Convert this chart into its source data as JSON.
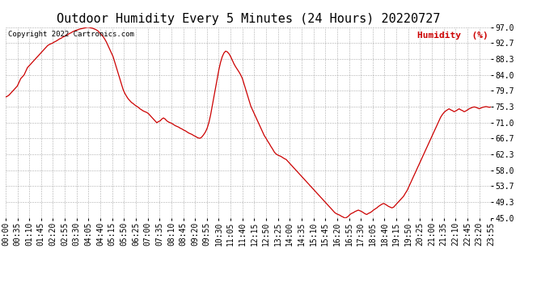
{
  "title": "Outdoor Humidity Every 5 Minutes (24 Hours) 20220727",
  "copyright_text": "Copyright 2022 Cartronics.com",
  "legend_text": "Humidity  (%)",
  "line_color": "#cc0000",
  "background_color": "#ffffff",
  "grid_color": "#999999",
  "ylim": [
    45.0,
    97.0
  ],
  "yticks": [
    45.0,
    49.3,
    53.7,
    58.0,
    62.3,
    66.7,
    71.0,
    75.3,
    79.7,
    84.0,
    88.3,
    92.7,
    97.0
  ],
  "title_fontsize": 11,
  "axis_fontsize": 7,
  "xtick_labels": [
    "00:00",
    "00:35",
    "01:10",
    "01:45",
    "02:20",
    "02:55",
    "03:30",
    "04:05",
    "04:40",
    "05:15",
    "05:50",
    "06:25",
    "07:00",
    "07:35",
    "08:10",
    "08:45",
    "09:20",
    "09:55",
    "10:30",
    "11:05",
    "11:40",
    "12:15",
    "12:50",
    "13:25",
    "14:00",
    "14:35",
    "15:10",
    "15:45",
    "16:20",
    "16:55",
    "17:30",
    "18:05",
    "18:40",
    "19:15",
    "19:50",
    "20:25",
    "21:00",
    "21:35",
    "22:10",
    "22:45",
    "23:20",
    "23:55"
  ],
  "humidity_values": [
    78.0,
    78.2,
    78.5,
    79.0,
    79.5,
    80.0,
    80.5,
    81.0,
    82.0,
    83.0,
    83.5,
    84.0,
    85.0,
    86.0,
    86.5,
    87.0,
    87.5,
    88.0,
    88.5,
    89.0,
    89.5,
    90.0,
    90.5,
    91.0,
    91.5,
    92.0,
    92.3,
    92.5,
    92.7,
    93.0,
    93.2,
    93.5,
    93.8,
    94.0,
    94.3,
    94.5,
    94.8,
    95.0,
    95.3,
    95.5,
    95.8,
    96.0,
    96.2,
    96.3,
    96.5,
    96.6,
    96.7,
    96.8,
    96.9,
    97.0,
    96.9,
    96.8,
    96.7,
    96.5,
    96.3,
    96.0,
    95.5,
    95.0,
    94.5,
    93.8,
    93.0,
    92.0,
    91.0,
    90.0,
    89.0,
    87.5,
    86.0,
    84.5,
    83.0,
    81.5,
    80.0,
    79.0,
    78.2,
    77.5,
    77.0,
    76.5,
    76.2,
    75.8,
    75.5,
    75.2,
    74.8,
    74.5,
    74.2,
    74.0,
    73.8,
    73.5,
    73.0,
    72.5,
    72.0,
    71.5,
    71.0,
    71.3,
    71.5,
    72.0,
    72.3,
    72.0,
    71.5,
    71.2,
    71.0,
    70.8,
    70.5,
    70.2,
    70.0,
    69.8,
    69.5,
    69.3,
    69.0,
    68.8,
    68.5,
    68.2,
    68.0,
    67.8,
    67.5,
    67.3,
    67.0,
    66.8,
    66.8,
    67.2,
    67.8,
    68.5,
    69.5,
    71.0,
    73.0,
    75.5,
    78.0,
    80.5,
    83.0,
    85.5,
    87.5,
    89.0,
    90.0,
    90.5,
    90.3,
    89.8,
    89.0,
    88.0,
    87.0,
    86.2,
    85.5,
    84.8,
    84.0,
    83.0,
    81.5,
    80.0,
    78.5,
    77.0,
    75.5,
    74.5,
    73.5,
    72.5,
    71.5,
    70.5,
    69.5,
    68.5,
    67.5,
    66.8,
    66.0,
    65.3,
    64.5,
    63.8,
    63.0,
    62.5,
    62.2,
    62.0,
    61.8,
    61.5,
    61.2,
    61.0,
    60.5,
    60.0,
    59.5,
    59.0,
    58.5,
    58.0,
    57.5,
    57.0,
    56.5,
    56.0,
    55.5,
    55.0,
    54.5,
    54.0,
    53.5,
    53.0,
    52.5,
    52.0,
    51.5,
    51.0,
    50.5,
    50.0,
    49.5,
    49.0,
    48.5,
    48.0,
    47.5,
    47.0,
    46.5,
    46.2,
    46.0,
    45.8,
    45.5,
    45.3,
    45.0,
    45.2,
    45.5,
    46.0,
    46.3,
    46.5,
    46.8,
    47.0,
    47.2,
    47.0,
    46.8,
    46.5,
    46.2,
    46.0,
    46.3,
    46.5,
    46.8,
    47.2,
    47.5,
    47.8,
    48.2,
    48.5,
    48.8,
    49.0,
    48.8,
    48.5,
    48.2,
    48.0,
    47.8,
    48.0,
    48.5,
    49.0,
    49.5,
    50.0,
    50.5,
    51.0,
    51.8,
    52.5,
    53.5,
    54.5,
    55.5,
    56.5,
    57.5,
    58.5,
    59.5,
    60.5,
    61.5,
    62.5,
    63.5,
    64.5,
    65.5,
    66.5,
    67.5,
    68.5,
    69.5,
    70.5,
    71.5,
    72.5,
    73.2,
    73.8,
    74.2,
    74.5,
    74.8,
    74.5,
    74.3,
    74.0,
    74.2,
    74.5,
    74.8,
    74.5,
    74.3,
    74.0,
    74.2,
    74.5,
    74.8,
    75.0,
    75.2,
    75.3,
    75.2,
    75.0,
    74.8,
    75.0,
    75.2,
    75.3,
    75.4,
    75.3,
    75.2,
    75.3
  ]
}
